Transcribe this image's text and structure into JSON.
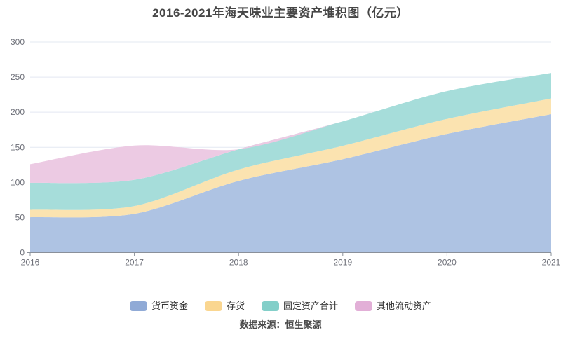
{
  "title": "2016-2021年海天味业主要资产堆积图（亿元）",
  "source": "数据来源：恒生聚源",
  "chart_data": {
    "type": "area",
    "stacked": true,
    "smooth": true,
    "title": "2016-2021年海天味业主要资产堆积图（亿元）",
    "xlabel": "",
    "ylabel": "",
    "categories": [
      "2016",
      "2017",
      "2018",
      "2019",
      "2020",
      "2021"
    ],
    "series": [
      {
        "name": "货币资金",
        "values": [
          50.3,
          55.1,
          102.1,
          133.1,
          169.1,
          197.2
        ],
        "fill": "#aec3e3",
        "swatch": "#90aad6"
      },
      {
        "name": "存货",
        "values": [
          10.6,
          11.2,
          16.2,
          19.0,
          21.4,
          22.3
        ],
        "fill": "#fbe3b0",
        "swatch": "#fad690"
      },
      {
        "name": "固定资产合计",
        "values": [
          38.5,
          37.4,
          28.9,
          34.9,
          39.5,
          36.5
        ],
        "fill": "#a6ddda",
        "swatch": "#83cfc9"
      },
      {
        "name": "其他流动资产",
        "values": [
          26.5,
          48.8,
          0,
          0,
          0,
          0
        ],
        "fill": "#eccae3",
        "swatch": "#e2afd7"
      }
    ],
    "ylim": [
      0,
      300
    ],
    "yticks": [
      0,
      50,
      100,
      150,
      200,
      250,
      300
    ],
    "grid": true,
    "legend_position": "bottom",
    "style": {
      "grid_line": "#e3e8f2",
      "axis_line": "#8a909a",
      "axis_label": "#6E7079"
    }
  }
}
